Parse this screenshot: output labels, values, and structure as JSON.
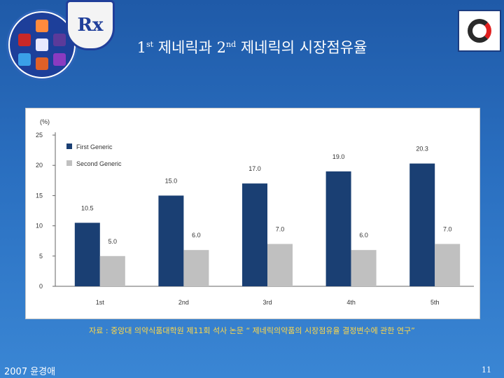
{
  "slide": {
    "title_first": "1",
    "title_first_sup": "st",
    "title_middle": " 제네릭과 2",
    "title_second_sup": "nd",
    "title_end": " 제네릭의 시장점유율",
    "source": "자료 : 중앙대 의약식품대학원 제11회 석사 논문 “ 제네릭의약품의 시장점유율 결정변수에 관한 연구”",
    "footer_left": "2007 윤경애",
    "page_number": "11",
    "logo_shield_text": "Rx"
  },
  "colors": {
    "first_generic": "#1a3f73",
    "second_generic": "#c0c0c0"
  },
  "chart_data": {
    "type": "bar",
    "ylabel": "(%)",
    "ylim": [
      0,
      25
    ],
    "yticks": [
      0,
      5,
      10,
      15,
      20,
      25
    ],
    "categories": [
      "1st",
      "2nd",
      "3rd",
      "4th",
      "5th"
    ],
    "series": [
      {
        "name": "First Generic",
        "values": [
          10.5,
          15.0,
          17.0,
          19.0,
          20.3
        ],
        "labels": [
          "10.5",
          "15.0",
          "17.0",
          "19.0",
          "20.3"
        ]
      },
      {
        "name": "Second Generic",
        "values": [
          5.0,
          6.0,
          7.0,
          6.0,
          7.0
        ],
        "labels": [
          "5.0",
          "6.0",
          "7.0",
          "6.0",
          "7.0"
        ]
      }
    ],
    "legend_position": "top-left",
    "grid": false
  }
}
